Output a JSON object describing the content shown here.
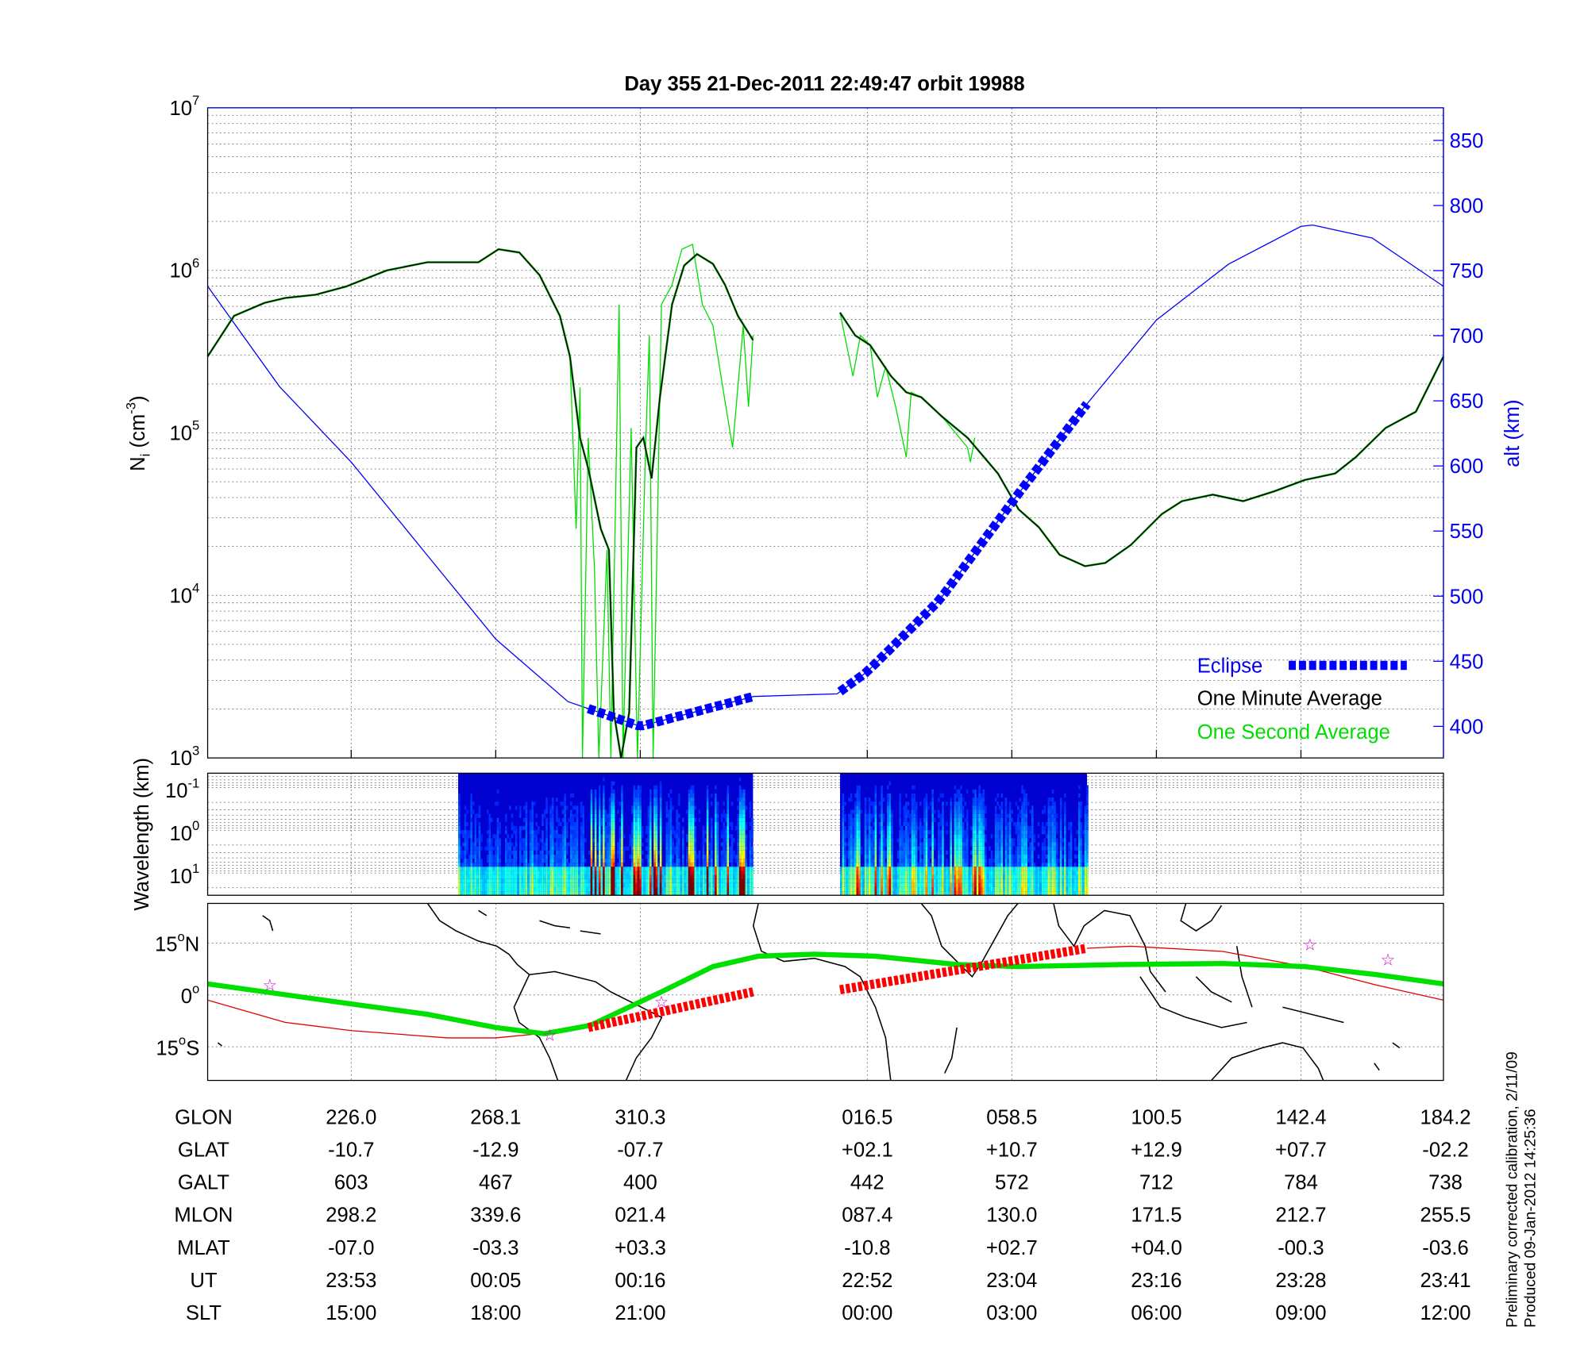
{
  "title": "Day 355  21-Dec-2011 22:49:47   orbit 19988",
  "colors": {
    "alt": "#0000ff",
    "eclipse": "#0000ff",
    "minute": "#000000",
    "second": "#00dd00",
    "track": "#00e000",
    "orbit_track": "#dd0000",
    "stars": "#cc00cc"
  },
  "footer": {
    "line1": "Preliminary corrected calibration,  2/11/09",
    "line2": "Produced 09-Jan-2012 14:25:36"
  },
  "chart_data": [
    {
      "type": "line",
      "name": "Ion density and altitude",
      "x_axis": "SLT (hours, wrapped; 36 = 12:00 next day)",
      "x_ticks": [
        12,
        15,
        18,
        21,
        24,
        27,
        30,
        33,
        36
      ],
      "ylabel": {
        "base": "N",
        "sub": "i",
        "unit_pre": " (cm",
        "unit_exp": "-3",
        "unit_post": ")"
      },
      "ylabel_right": "alt (km)",
      "yscale": "log",
      "ylim": [
        1000,
        10000000
      ],
      "yticks": [
        {
          "base": "10",
          "exp": "3"
        },
        {
          "base": "10",
          "exp": "4"
        },
        {
          "base": "10",
          "exp": "5"
        },
        {
          "base": "10",
          "exp": "6"
        },
        {
          "base": "10",
          "exp": "7"
        }
      ],
      "ylim_right": [
        376,
        875
      ],
      "yticks_right": [
        "400",
        "450",
        "500",
        "550",
        "600",
        "650",
        "700",
        "750",
        "800",
        "850"
      ],
      "grid": true,
      "legend": {
        "placement": "bottom-right",
        "entries": [
          "Eclipse",
          "One Minute Average",
          "One Second Average"
        ]
      },
      "series": [
        {
          "name": "One Minute Average",
          "units": "log10 Ni",
          "segments": [
            {
              "x": [
                12.0,
                12.55,
                13.19,
                13.62,
                14.26,
                14.89,
                15.74,
                16.58,
                17.64,
                18.06,
                18.49,
                18.91,
                19.33,
                19.54,
                19.75,
                19.92,
                20.18,
                20.35,
                20.45,
                20.6,
                20.77,
                20.92,
                21.04,
                21.15,
                21.26,
                21.42,
                21.58,
                21.75,
                21.96,
                22.12,
                22.29,
                22.49
              ],
              "y": [
                5.47,
                5.72,
                5.8,
                5.83,
                5.85,
                5.9,
                6.0,
                6.05,
                6.05,
                6.13,
                6.11,
                5.97,
                5.72,
                5.47,
                4.97,
                4.78,
                4.41,
                4.28,
                3.28,
                3.0,
                3.28,
                4.91,
                4.97,
                4.72,
                5.22,
                5.79,
                6.03,
                6.1,
                6.04,
                5.91,
                5.72,
                5.57
              ]
            },
            {
              "x": [
                23.64,
                23.84,
                24.06,
                24.49,
                24.81,
                25.12,
                25.55,
                26.08,
                26.71,
                27.14,
                27.56,
                27.99,
                28.52,
                28.94,
                29.47,
                30.11,
                30.53,
                31.17,
                31.8,
                32.44,
                33.08,
                33.72,
                34.15,
                34.78,
                35.42,
                36.0
              ],
              "y": [
                5.74,
                5.6,
                5.54,
                5.35,
                5.25,
                5.22,
                5.1,
                4.97,
                4.75,
                4.53,
                4.42,
                4.25,
                4.18,
                4.2,
                4.31,
                4.5,
                4.58,
                4.62,
                4.58,
                4.64,
                4.71,
                4.75,
                4.85,
                5.03,
                5.13,
                5.47
              ]
            }
          ]
        },
        {
          "name": "One Second Average",
          "units": "log10 Ni",
          "segments": [
            {
              "x": [
                19.54,
                19.67,
                19.75,
                19.8,
                19.92,
                20.05,
                20.14,
                20.31,
                20.39,
                20.56,
                20.64,
                20.81,
                20.94,
                21.07,
                21.12,
                21.17,
                21.28,
                21.42,
                21.55,
                21.69,
                21.82,
                21.96,
                22.09,
                22.22,
                22.36,
                22.43,
                22.49
              ],
              "y": [
                5.47,
                4.41,
                5.28,
                3.0,
                4.97,
                4.16,
                3.0,
                4.28,
                3.0,
                5.79,
                3.0,
                5.03,
                3.0,
                4.91,
                5.6,
                3.0,
                5.79,
                5.91,
                6.13,
                6.16,
                5.79,
                5.66,
                5.28,
                4.91,
                5.66,
                5.16,
                5.6
              ]
            },
            {
              "x": [
                23.64,
                23.81,
                23.91,
                24.06,
                24.21,
                24.38,
                24.59,
                24.81,
                24.91,
                25.12,
                25.55,
                26.08,
                26.14,
                26.23
              ],
              "y": [
                5.74,
                5.35,
                5.6,
                5.54,
                5.22,
                5.41,
                5.16,
                4.85,
                5.25,
                5.22,
                5.1,
                4.91,
                4.82,
                4.97
              ]
            }
          ]
        },
        {
          "name": "Altitude",
          "units": "km",
          "x": [
            12,
            13.5,
            15,
            16.5,
            18,
            19.5,
            21,
            22.5,
            23.6,
            24,
            25.5,
            27,
            28.5,
            30,
            31.5,
            33,
            33.25,
            34.5,
            36
          ],
          "y": [
            738,
            661,
            603,
            535,
            467,
            419,
            400,
            423,
            425,
            442,
            497,
            572,
            645,
            712,
            755,
            784,
            785,
            775,
            738
          ]
        }
      ],
      "eclipse_ranges": [
        [
          19.92,
          22.49
        ],
        [
          23.64,
          28.56
        ]
      ]
    },
    {
      "type": "heatmap",
      "name": "Spectrogram",
      "ylabel": "Wavelength (km)",
      "yticks": [
        {
          "base": "10",
          "exp": "-1"
        },
        {
          "base": "10",
          "exp": "0"
        },
        {
          "base": "10",
          "exp": "1"
        }
      ],
      "data_ranges": [
        [
          17.22,
          22.49
        ],
        [
          23.64,
          28.56
        ]
      ],
      "colormap": "jet"
    },
    {
      "type": "line",
      "name": "Ground track map",
      "yticks": [
        {
          "num": "15",
          "deg": "o",
          "hem": "N"
        },
        {
          "num": "0",
          "deg": "o",
          "hem": ""
        },
        {
          "num": "15",
          "deg": "o",
          "hem": "S"
        }
      ],
      "series": [
        {
          "name": "Green track",
          "units": "deg lat",
          "x": [
            12,
            13.19,
            15,
            16.58,
            18,
            19.01,
            19.96,
            21.28,
            21.96,
            22.56,
            23.3,
            24.17,
            25.87,
            27.14,
            29.26,
            31.38,
            33.08,
            34.57,
            36
          ],
          "y": [
            3.2,
            0.9,
            -2.6,
            -5.6,
            -9.4,
            -11.2,
            -8.8,
            0.9,
            8.2,
            11.2,
            11.8,
            11.2,
            8.8,
            8.2,
            8.8,
            9.1,
            8.2,
            5.9,
            3.2
          ]
        },
        {
          "name": "Orbit track",
          "units": "deg lat",
          "x": [
            12,
            13.62,
            15,
            17.0,
            18,
            19.12,
            19.92
          ],
          "y": [
            -1.5,
            -7.9,
            -10.3,
            -12.4,
            -12.4,
            -10.9,
            -9.4
          ]
        },
        {
          "name": "Orbit track (cont.)",
          "units": "deg lat",
          "x": [
            28.56,
            29.47,
            31.38,
            33.08,
            34.57,
            36
          ],
          "y": [
            13.5,
            14.1,
            12.6,
            8.2,
            2.9,
            -1.5
          ]
        },
        {
          "name": "Eclipse track 1",
          "units": "deg lat",
          "x": [
            19.92,
            22.49
          ],
          "y": [
            -9.4,
            0.9
          ]
        },
        {
          "name": "Eclipse track 2",
          "units": "deg lat",
          "x": [
            23.64,
            28.56
          ],
          "y": [
            1.5,
            13.5
          ]
        }
      ],
      "stars": {
        "x": [
          13.3,
          19.12,
          21.28,
          33.19,
          34.83
        ],
        "y": [
          3.0,
          -11.5,
          -1.8,
          14.7,
          10.3
        ]
      }
    }
  ],
  "table": {
    "rows": [
      {
        "label": "GLON",
        "values": [
          "226.0",
          "268.1",
          "310.3",
          "016.5",
          "058.5",
          "100.5",
          "142.4",
          "184.2"
        ]
      },
      {
        "label": "GLAT",
        "values": [
          "-10.7",
          "-12.9",
          "-07.7",
          "+02.1",
          "+10.7",
          "+12.9",
          "+07.7",
          "-02.2"
        ]
      },
      {
        "label": "GALT",
        "values": [
          "603",
          "467",
          "400",
          "442",
          "572",
          "712",
          "784",
          "738"
        ]
      },
      {
        "label": "MLON",
        "values": [
          "298.2",
          "339.6",
          "021.4",
          "087.4",
          "130.0",
          "171.5",
          "212.7",
          "255.5"
        ]
      },
      {
        "label": "MLAT",
        "values": [
          "-07.0",
          "-03.3",
          "+03.3",
          "-10.8",
          "+02.7",
          "+04.0",
          "-00.3",
          "-03.6"
        ]
      },
      {
        "label": "UT",
        "values": [
          "23:53",
          "00:05",
          "00:16",
          "22:52",
          "23:04",
          "23:16",
          "23:28",
          "23:41"
        ]
      },
      {
        "label": "SLT",
        "values": [
          "15:00",
          "18:00",
          "21:00",
          "00:00",
          "03:00",
          "06:00",
          "09:00",
          "12:00"
        ]
      }
    ]
  }
}
